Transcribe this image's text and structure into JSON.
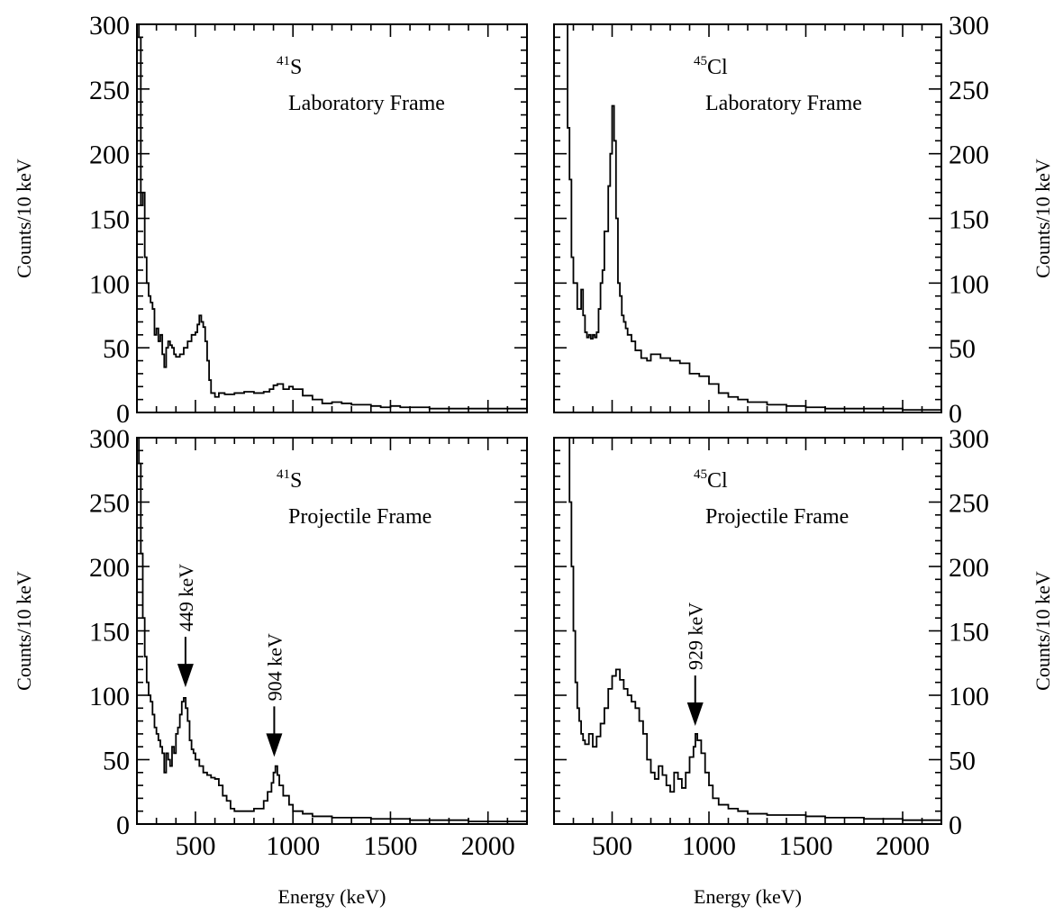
{
  "chart_data": {
    "type": "line",
    "layout": "2x2 grid of step-histogram spectra",
    "panels": [
      {
        "id": "s41-lab",
        "nucleus_mass": "41",
        "nucleus_symbol": "S",
        "frame_label": "Laboratory Frame",
        "y_axis_side": "left",
        "ylabel": "Counts/10 keV",
        "xlabel": "",
        "xlim": [
          200,
          2200
        ],
        "ylim": [
          0,
          300
        ],
        "x_ticks": [
          500,
          1000,
          1500,
          2000
        ],
        "y_ticks": [
          0,
          50,
          100,
          150,
          200,
          250,
          300
        ],
        "show_x_tick_labels": false,
        "arrows": [],
        "series": [
          {
            "style": "step",
            "x": [
              200,
              210,
              220,
              230,
              240,
              250,
              260,
              270,
              280,
              290,
              300,
              310,
              320,
              330,
              340,
              350,
              360,
              370,
              380,
              390,
              400,
              420,
              440,
              460,
              480,
              500,
              510,
              520,
              530,
              540,
              550,
              560,
              570,
              580,
              600,
              620,
              650,
              680,
              700,
              750,
              800,
              850,
              880,
              900,
              920,
              950,
              980,
              1000,
              1050,
              1100,
              1150,
              1200,
              1250,
              1300,
              1350,
              1400,
              1450,
              1500,
              1550,
              1600,
              1700,
              1800,
              1900,
              2000
            ],
            "y": [
              300,
              290,
              160,
              170,
              120,
              100,
              90,
              85,
              80,
              60,
              65,
              55,
              60,
              45,
              35,
              50,
              55,
              52,
              50,
              45,
              43,
              45,
              50,
              55,
              60,
              62,
              68,
              75,
              70,
              66,
              55,
              40,
              25,
              15,
              12,
              15,
              14,
              14,
              15,
              16,
              15,
              16,
              18,
              21,
              22,
              18,
              20,
              18,
              13,
              10,
              7,
              8,
              7,
              6,
              6,
              5,
              4,
              5,
              4,
              4,
              3,
              3,
              3,
              3
            ]
          }
        ]
      },
      {
        "id": "cl45-lab",
        "nucleus_mass": "45",
        "nucleus_symbol": "Cl",
        "frame_label": "Laboratory Frame",
        "y_axis_side": "right",
        "ylabel": "Counts/10 keV",
        "xlabel": "",
        "xlim": [
          200,
          2200
        ],
        "ylim": [
          0,
          300
        ],
        "x_ticks": [
          500,
          1000,
          1500,
          2000
        ],
        "y_ticks": [
          0,
          50,
          100,
          150,
          200,
          250,
          300
        ],
        "show_x_tick_labels": false,
        "arrows": [],
        "series": [
          {
            "style": "step",
            "x": [
              200,
              260,
              270,
              280,
              290,
              300,
              320,
              340,
              350,
              360,
              370,
              380,
              390,
              400,
              410,
              420,
              430,
              440,
              450,
              460,
              480,
              490,
              500,
              510,
              520,
              530,
              540,
              550,
              560,
              570,
              580,
              600,
              620,
              650,
              680,
              700,
              750,
              800,
              850,
              900,
              950,
              1000,
              1050,
              1100,
              1150,
              1200,
              1300,
              1400,
              1500,
              1600,
              1800,
              2000,
              2100,
              2200
            ],
            "y": [
              300,
              300,
              220,
              180,
              120,
              100,
              80,
              95,
              75,
              62,
              58,
              60,
              57,
              60,
              58,
              62,
              80,
              100,
              110,
              140,
              175,
              200,
              237,
              210,
              150,
              100,
              90,
              75,
              70,
              65,
              60,
              55,
              48,
              42,
              40,
              45,
              42,
              40,
              38,
              30,
              28,
              22,
              15,
              12,
              10,
              8,
              6,
              5,
              4,
              3,
              3,
              2,
              2,
              2
            ]
          }
        ]
      },
      {
        "id": "s41-proj",
        "nucleus_mass": "41",
        "nucleus_symbol": "S",
        "frame_label": "Projectile Frame",
        "y_axis_side": "left",
        "ylabel": "Counts/10 keV",
        "xlabel": "Energy (keV)",
        "xlim": [
          200,
          2200
        ],
        "ylim": [
          0,
          300
        ],
        "x_ticks": [
          500,
          1000,
          1500,
          2000
        ],
        "y_ticks": [
          0,
          50,
          100,
          150,
          200,
          250,
          300
        ],
        "show_x_tick_labels": true,
        "arrows": [
          {
            "label": "449 keV",
            "x": 449,
            "y_tip": 102
          },
          {
            "label": "904 keV",
            "x": 904,
            "y_tip": 48
          }
        ],
        "series": [
          {
            "style": "step",
            "x": [
              200,
              210,
              220,
              230,
              240,
              250,
              260,
              270,
              280,
              290,
              300,
              310,
              320,
              330,
              340,
              350,
              360,
              370,
              380,
              390,
              400,
              410,
              420,
              430,
              440,
              450,
              460,
              470,
              480,
              490,
              500,
              520,
              540,
              560,
              580,
              600,
              620,
              640,
              660,
              680,
              700,
              750,
              800,
              850,
              870,
              890,
              900,
              910,
              920,
              930,
              950,
              980,
              1000,
              1050,
              1100,
              1200,
              1300,
              1400,
              1500,
              1600,
              1700,
              1800,
              1900,
              2000
            ],
            "y": [
              300,
              280,
              210,
              160,
              130,
              110,
              100,
              95,
              85,
              75,
              70,
              65,
              60,
              55,
              40,
              55,
              50,
              45,
              60,
              55,
              70,
              75,
              85,
              95,
              98,
              90,
              80,
              65,
              58,
              55,
              50,
              45,
              40,
              38,
              36,
              35,
              30,
              22,
              18,
              12,
              10,
              10,
              12,
              18,
              25,
              32,
              40,
              45,
              38,
              30,
              22,
              15,
              10,
              8,
              6,
              5,
              5,
              4,
              4,
              3,
              3,
              3,
              2,
              2
            ]
          }
        ]
      },
      {
        "id": "cl45-proj",
        "nucleus_mass": "45",
        "nucleus_symbol": "Cl",
        "frame_label": "Projectile Frame",
        "y_axis_side": "right",
        "ylabel": "Counts/10 keV",
        "xlabel": "Energy (keV)",
        "xlim": [
          200,
          2200
        ],
        "ylim": [
          0,
          300
        ],
        "x_ticks": [
          500,
          1000,
          1500,
          2000
        ],
        "y_ticks": [
          0,
          50,
          100,
          150,
          200,
          250,
          300
        ],
        "show_x_tick_labels": true,
        "arrows": [
          {
            "label": "929 keV",
            "x": 929,
            "y_tip": 72
          }
        ],
        "series": [
          {
            "style": "step",
            "x": [
              200,
              270,
              280,
              290,
              300,
              310,
              320,
              330,
              340,
              350,
              360,
              380,
              400,
              420,
              440,
              460,
              480,
              500,
              520,
              540,
              560,
              580,
              600,
              620,
              640,
              660,
              680,
              700,
              720,
              740,
              760,
              780,
              800,
              820,
              840,
              860,
              880,
              900,
              920,
              930,
              940,
              960,
              980,
              1000,
              1020,
              1050,
              1100,
              1150,
              1200,
              1300,
              1400,
              1500,
              1600,
              1700,
              1800,
              2000,
              2100,
              2200
            ],
            "y": [
              300,
              300,
              250,
              200,
              150,
              110,
              90,
              80,
              70,
              65,
              62,
              70,
              60,
              68,
              78,
              90,
              105,
              115,
              120,
              112,
              105,
              100,
              95,
              90,
              80,
              70,
              50,
              40,
              35,
              45,
              38,
              30,
              25,
              40,
              35,
              28,
              40,
              52,
              60,
              70,
              65,
              55,
              40,
              30,
              20,
              15,
              12,
              10,
              8,
              7,
              7,
              6,
              5,
              5,
              4,
              3,
              3,
              3
            ]
          }
        ]
      }
    ]
  }
}
